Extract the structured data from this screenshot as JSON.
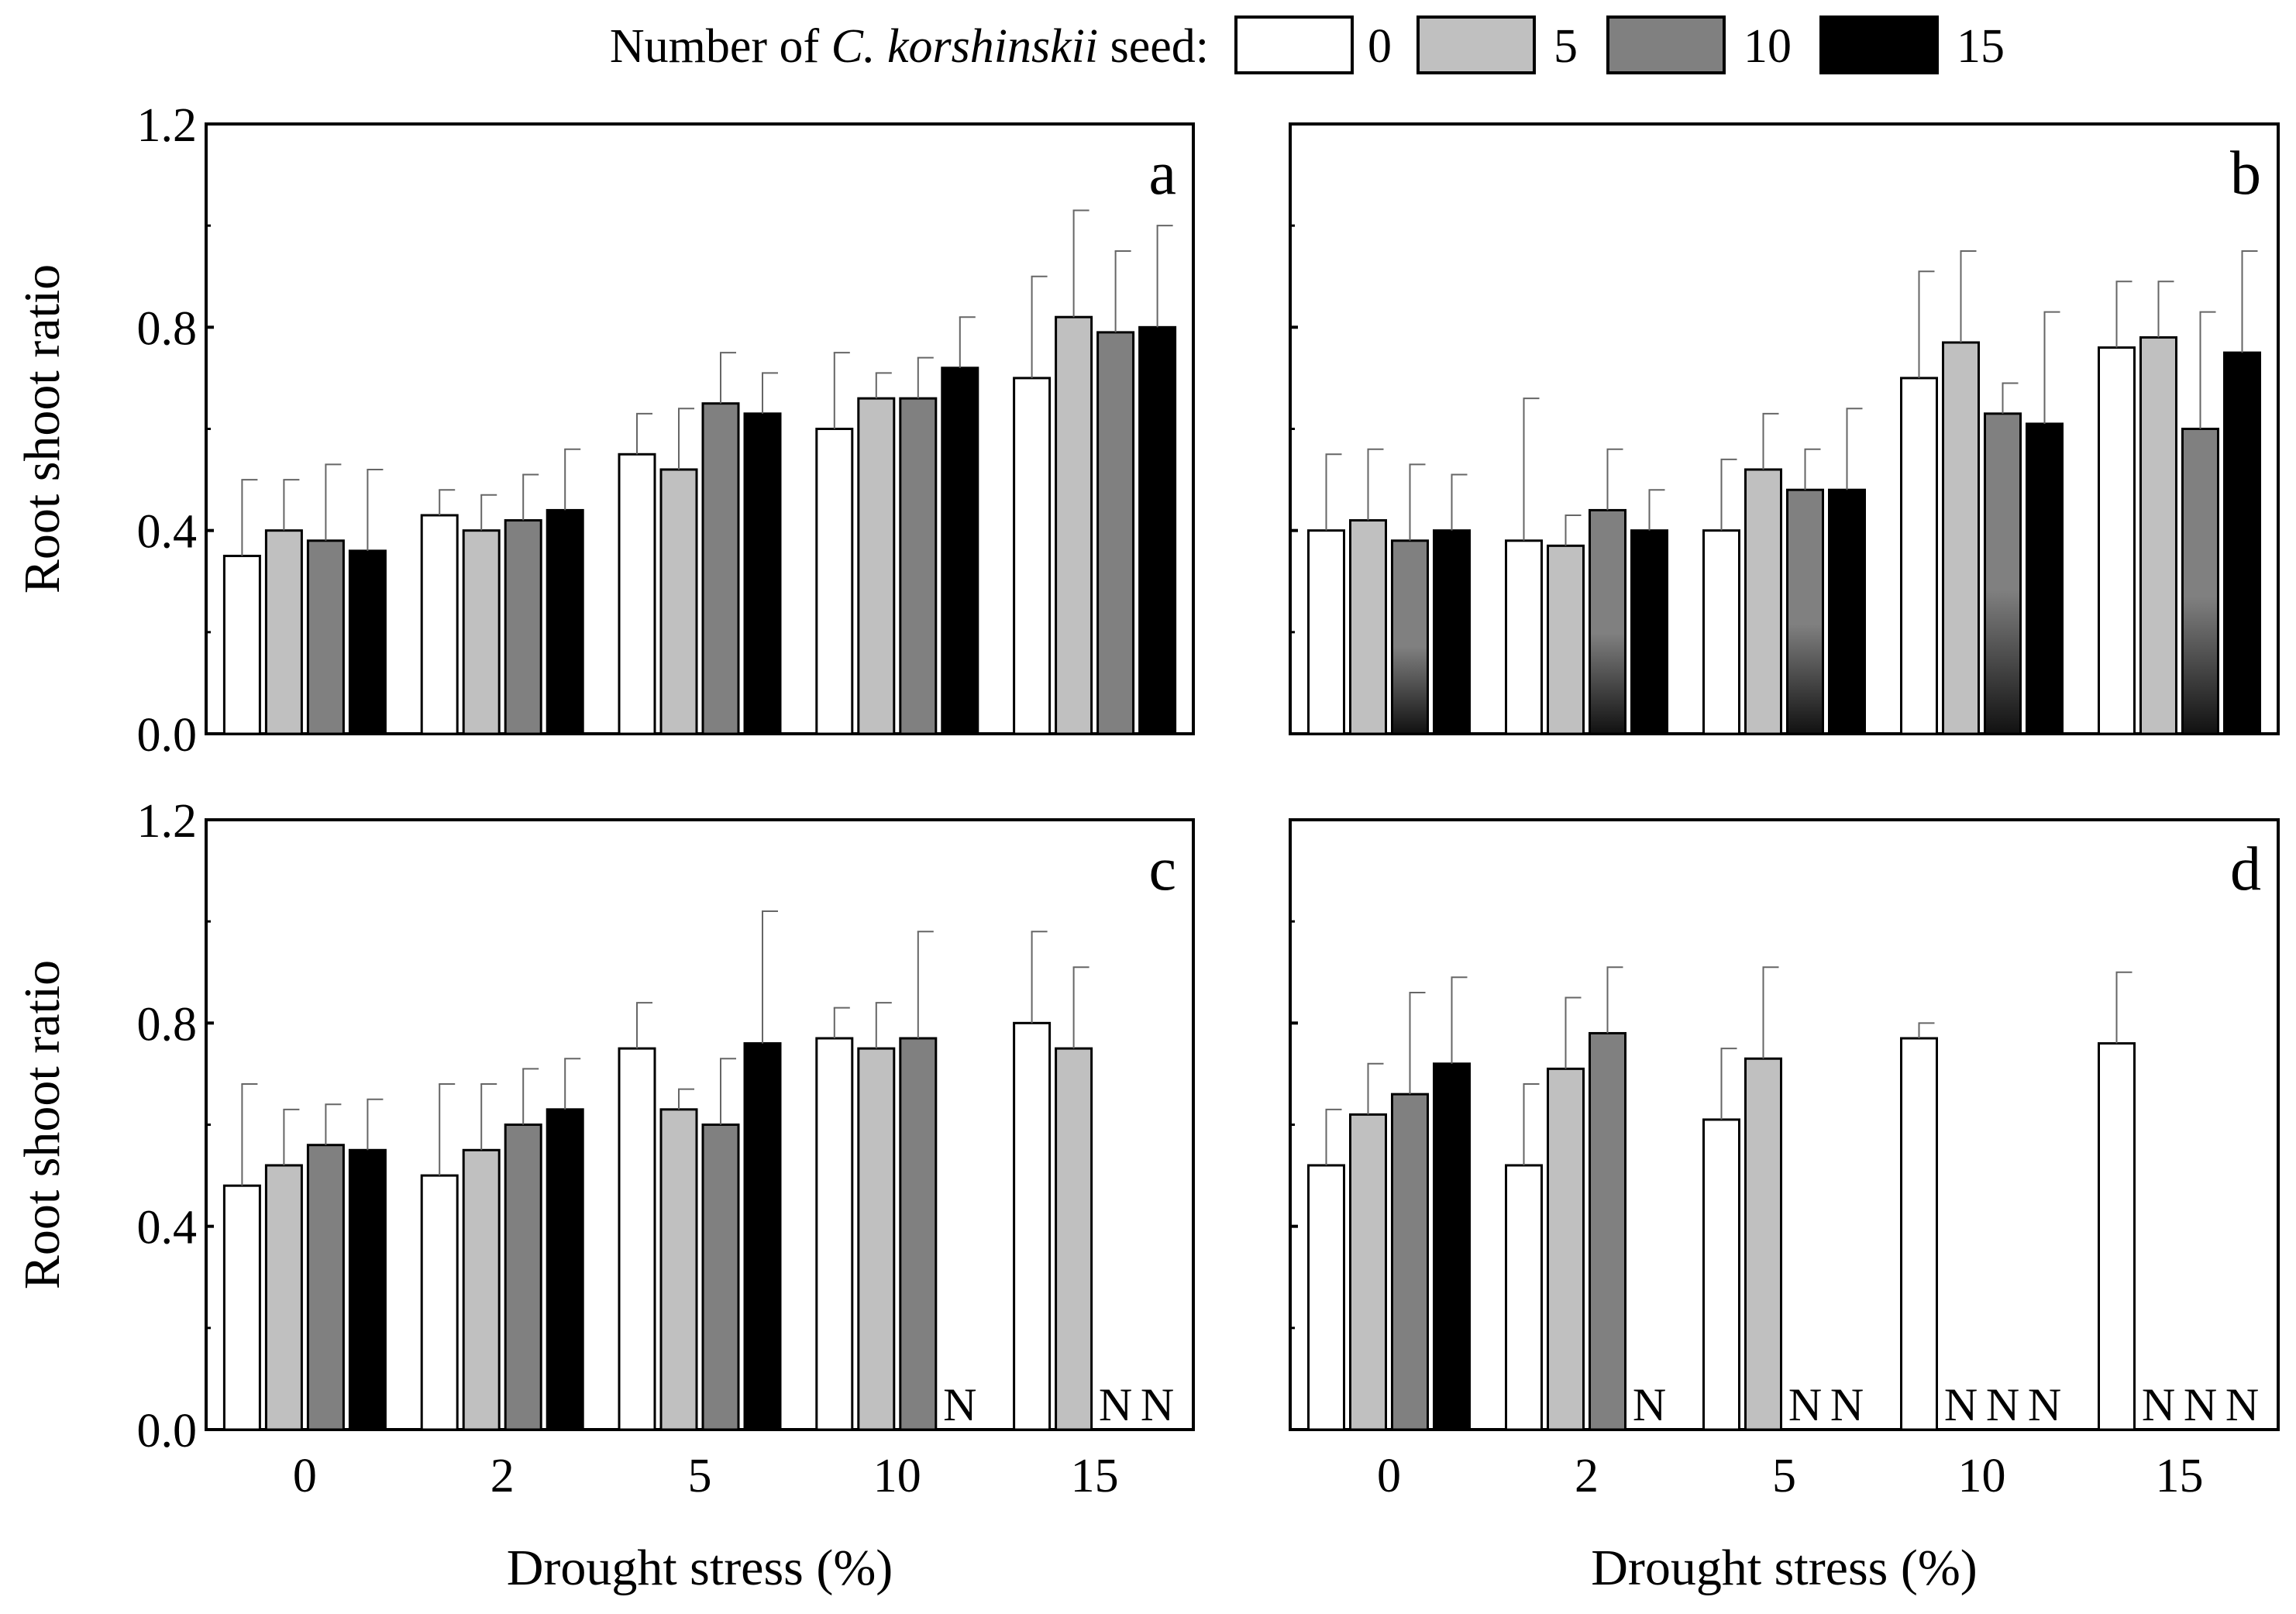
{
  "legend": {
    "label_prefix": "Number of ",
    "label_species": "C. korshinskii",
    "label_suffix": " seed:",
    "entries": [
      {
        "label": "0",
        "color": "#ffffff"
      },
      {
        "label": "5",
        "color": "#c0c0c0"
      },
      {
        "label": "10",
        "color": "#808080"
      },
      {
        "label": "15",
        "color": "#000000"
      }
    ]
  },
  "na_label": "N",
  "chart_data": [
    {
      "panel": "a",
      "type": "bar",
      "ylabel": "Root shoot ratio",
      "xlabel": "",
      "ylim": [
        0,
        1.2
      ],
      "yticks": [
        "0.0",
        "0.4",
        "0.8",
        "1.2"
      ],
      "categories": [
        "0",
        "2",
        "5",
        "10",
        "15"
      ],
      "series": [
        {
          "name": "0",
          "values": [
            0.35,
            0.43,
            0.55,
            0.6,
            0.7
          ],
          "errors": [
            0.15,
            0.05,
            0.08,
            0.15,
            0.2
          ]
        },
        {
          "name": "5",
          "values": [
            0.4,
            0.4,
            0.52,
            0.66,
            0.82
          ],
          "errors": [
            0.1,
            0.07,
            0.12,
            0.05,
            0.21
          ]
        },
        {
          "name": "10",
          "values": [
            0.38,
            0.42,
            0.65,
            0.66,
            0.79
          ],
          "errors": [
            0.15,
            0.09,
            0.1,
            0.08,
            0.16
          ]
        },
        {
          "name": "15",
          "values": [
            0.36,
            0.44,
            0.63,
            0.72,
            0.8
          ],
          "errors": [
            0.16,
            0.12,
            0.08,
            0.1,
            0.2
          ]
        }
      ]
    },
    {
      "panel": "b",
      "type": "bar",
      "ylabel": "",
      "xlabel": "",
      "ylim": [
        0,
        1.2
      ],
      "yticks": [],
      "categories": [
        "0",
        "2",
        "5",
        "10",
        "15"
      ],
      "series": [
        {
          "name": "0",
          "values": [
            0.4,
            0.38,
            0.4,
            0.7,
            0.76
          ],
          "errors": [
            0.15,
            0.28,
            0.14,
            0.21,
            0.13
          ]
        },
        {
          "name": "5",
          "values": [
            0.42,
            0.37,
            0.52,
            0.77,
            0.78
          ],
          "errors": [
            0.14,
            0.06,
            0.11,
            0.18,
            0.11
          ]
        },
        {
          "name": "10",
          "values": [
            0.38,
            0.44,
            0.48,
            0.63,
            0.6
          ],
          "errors": [
            0.15,
            0.12,
            0.08,
            0.06,
            0.23
          ]
        },
        {
          "name": "15",
          "values": [
            0.4,
            0.4,
            0.48,
            0.61,
            0.75
          ],
          "errors": [
            0.11,
            0.08,
            0.16,
            0.22,
            0.2
          ]
        }
      ]
    },
    {
      "panel": "c",
      "type": "bar",
      "ylabel": "Root shoot ratio",
      "xlabel": "Drought stress (%)",
      "ylim": [
        0,
        1.2
      ],
      "yticks": [
        "0.0",
        "0.4",
        "0.8",
        "1.2"
      ],
      "categories": [
        "0",
        "2",
        "5",
        "10",
        "15"
      ],
      "series": [
        {
          "name": "0",
          "values": [
            0.48,
            0.5,
            0.75,
            0.77,
            0.8
          ],
          "errors": [
            0.2,
            0.18,
            0.09,
            0.06,
            0.18
          ]
        },
        {
          "name": "5",
          "values": [
            0.52,
            0.55,
            0.63,
            0.75,
            0.75
          ],
          "errors": [
            0.11,
            0.13,
            0.04,
            0.09,
            0.16
          ]
        },
        {
          "name": "10",
          "values": [
            0.56,
            0.6,
            0.6,
            0.77,
            null
          ],
          "errors": [
            0.08,
            0.11,
            0.13,
            0.21,
            null
          ]
        },
        {
          "name": "15",
          "values": [
            0.55,
            0.63,
            0.76,
            null,
            null
          ],
          "errors": [
            0.1,
            0.1,
            0.26,
            null,
            null
          ]
        }
      ]
    },
    {
      "panel": "d",
      "type": "bar",
      "ylabel": "",
      "xlabel": "Drought stress (%)",
      "ylim": [
        0,
        1.2
      ],
      "yticks": [],
      "categories": [
        "0",
        "2",
        "5",
        "10",
        "15"
      ],
      "series": [
        {
          "name": "0",
          "values": [
            0.52,
            0.52,
            0.61,
            0.77,
            0.76
          ],
          "errors": [
            0.11,
            0.16,
            0.14,
            0.03,
            0.14
          ]
        },
        {
          "name": "5",
          "values": [
            0.62,
            0.71,
            0.73,
            null,
            null
          ],
          "errors": [
            0.1,
            0.14,
            0.18,
            null,
            null
          ]
        },
        {
          "name": "10",
          "values": [
            0.66,
            0.78,
            null,
            null,
            null
          ],
          "errors": [
            0.2,
            0.13,
            null,
            null,
            null
          ]
        },
        {
          "name": "15",
          "values": [
            0.72,
            null,
            null,
            null,
            null
          ],
          "errors": [
            0.17,
            null,
            null,
            null,
            null
          ]
        }
      ]
    }
  ]
}
